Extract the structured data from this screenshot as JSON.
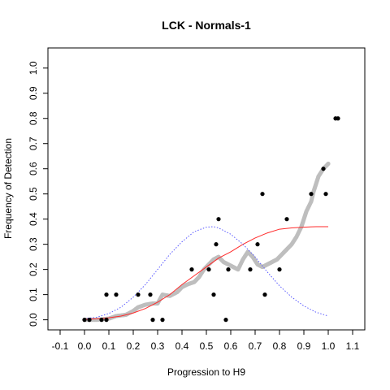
{
  "chart_data": {
    "type": "scatter",
    "title": "LCK - Normals-1",
    "xlabel": "Progression to H9",
    "ylabel": "Frequency of Detection",
    "xlim": [
      -0.15,
      1.15
    ],
    "ylim": [
      -0.04,
      1.08
    ],
    "x_ticks": [
      "-0.1",
      "0.0",
      "0.1",
      "0.2",
      "0.3",
      "0.4",
      "0.5",
      "0.6",
      "0.7",
      "0.8",
      "0.9",
      "1.0",
      "1.1"
    ],
    "y_ticks": [
      "0.0",
      "0.1",
      "0.2",
      "0.3",
      "0.4",
      "0.5",
      "0.6",
      "0.7",
      "0.8",
      "0.9",
      "1.0"
    ],
    "grid": false,
    "legend": "none",
    "colors": {
      "observed": "#000000",
      "smoothed": "#bebebe",
      "fitted_cdf": "#ff2a2a",
      "fitted_density": "#5a5aff"
    },
    "series": [
      {
        "role": "observed",
        "style": "black points",
        "points": [
          [
            0.0,
            0.0
          ],
          [
            0.02,
            0.0
          ],
          [
            0.07,
            0.0
          ],
          [
            0.09,
            0.0
          ],
          [
            0.09,
            0.1
          ],
          [
            0.13,
            0.1
          ],
          [
            0.22,
            0.1
          ],
          [
            0.27,
            0.1
          ],
          [
            0.28,
            0.0
          ],
          [
            0.32,
            0.0
          ],
          [
            0.44,
            0.2
          ],
          [
            0.51,
            0.2
          ],
          [
            0.53,
            0.1
          ],
          [
            0.54,
            0.3
          ],
          [
            0.55,
            0.4
          ],
          [
            0.58,
            0.0
          ],
          [
            0.59,
            0.2
          ],
          [
            0.68,
            0.2
          ],
          [
            0.71,
            0.3
          ],
          [
            0.73,
            0.5
          ],
          [
            0.74,
            0.1
          ],
          [
            0.8,
            0.2
          ],
          [
            0.83,
            0.4
          ],
          [
            0.93,
            0.5
          ],
          [
            0.98,
            0.6
          ],
          [
            0.99,
            0.5
          ],
          [
            1.03,
            0.8
          ],
          [
            1.04,
            0.8
          ]
        ]
      },
      {
        "role": "smoothed",
        "style": "grey dense points",
        "points": [
          [
            0.0,
            0.0
          ],
          [
            0.05,
            0.0
          ],
          [
            0.1,
            0.005
          ],
          [
            0.13,
            0.015
          ],
          [
            0.17,
            0.02
          ],
          [
            0.2,
            0.035
          ],
          [
            0.22,
            0.05
          ],
          [
            0.25,
            0.06
          ],
          [
            0.28,
            0.065
          ],
          [
            0.3,
            0.065
          ],
          [
            0.32,
            0.1
          ],
          [
            0.35,
            0.095
          ],
          [
            0.38,
            0.11
          ],
          [
            0.4,
            0.13
          ],
          [
            0.42,
            0.14
          ],
          [
            0.45,
            0.15
          ],
          [
            0.47,
            0.17
          ],
          [
            0.49,
            0.2
          ],
          [
            0.51,
            0.22
          ],
          [
            0.53,
            0.24
          ],
          [
            0.55,
            0.25
          ],
          [
            0.57,
            0.23
          ],
          [
            0.59,
            0.22
          ],
          [
            0.61,
            0.21
          ],
          [
            0.63,
            0.2
          ],
          [
            0.65,
            0.24
          ],
          [
            0.67,
            0.27
          ],
          [
            0.69,
            0.25
          ],
          [
            0.71,
            0.22
          ],
          [
            0.73,
            0.21
          ],
          [
            0.75,
            0.22
          ],
          [
            0.77,
            0.23
          ],
          [
            0.79,
            0.24
          ],
          [
            0.81,
            0.26
          ],
          [
            0.83,
            0.28
          ],
          [
            0.85,
            0.3
          ],
          [
            0.87,
            0.33
          ],
          [
            0.89,
            0.37
          ],
          [
            0.9,
            0.4
          ],
          [
            0.91,
            0.43
          ],
          [
            0.93,
            0.47
          ],
          [
            0.94,
            0.51
          ],
          [
            0.95,
            0.54
          ],
          [
            0.96,
            0.57
          ],
          [
            0.98,
            0.6
          ],
          [
            1.0,
            0.62
          ]
        ]
      },
      {
        "role": "fitted_cdf",
        "style": "red line",
        "points": [
          [
            0.0,
            0.002
          ],
          [
            0.05,
            0.004
          ],
          [
            0.1,
            0.008
          ],
          [
            0.15,
            0.015
          ],
          [
            0.2,
            0.027
          ],
          [
            0.25,
            0.045
          ],
          [
            0.3,
            0.07
          ],
          [
            0.35,
            0.1
          ],
          [
            0.4,
            0.14
          ],
          [
            0.45,
            0.175
          ],
          [
            0.5,
            0.21
          ],
          [
            0.55,
            0.245
          ],
          [
            0.6,
            0.27
          ],
          [
            0.65,
            0.3
          ],
          [
            0.7,
            0.325
          ],
          [
            0.75,
            0.345
          ],
          [
            0.8,
            0.36
          ],
          [
            0.85,
            0.365
          ],
          [
            0.9,
            0.368
          ],
          [
            0.95,
            0.37
          ],
          [
            1.0,
            0.37
          ]
        ]
      },
      {
        "role": "fitted_density",
        "style": "blue dotted line",
        "points": [
          [
            0.0,
            0.005
          ],
          [
            0.05,
            0.01
          ],
          [
            0.1,
            0.025
          ],
          [
            0.15,
            0.05
          ],
          [
            0.2,
            0.09
          ],
          [
            0.25,
            0.14
          ],
          [
            0.3,
            0.2
          ],
          [
            0.35,
            0.26
          ],
          [
            0.4,
            0.31
          ],
          [
            0.45,
            0.35
          ],
          [
            0.5,
            0.368
          ],
          [
            0.53,
            0.37
          ],
          [
            0.55,
            0.365
          ],
          [
            0.6,
            0.34
          ],
          [
            0.65,
            0.3
          ],
          [
            0.7,
            0.25
          ],
          [
            0.75,
            0.19
          ],
          [
            0.8,
            0.135
          ],
          [
            0.85,
            0.09
          ],
          [
            0.9,
            0.055
          ],
          [
            0.95,
            0.03
          ],
          [
            1.0,
            0.015
          ]
        ]
      }
    ]
  }
}
